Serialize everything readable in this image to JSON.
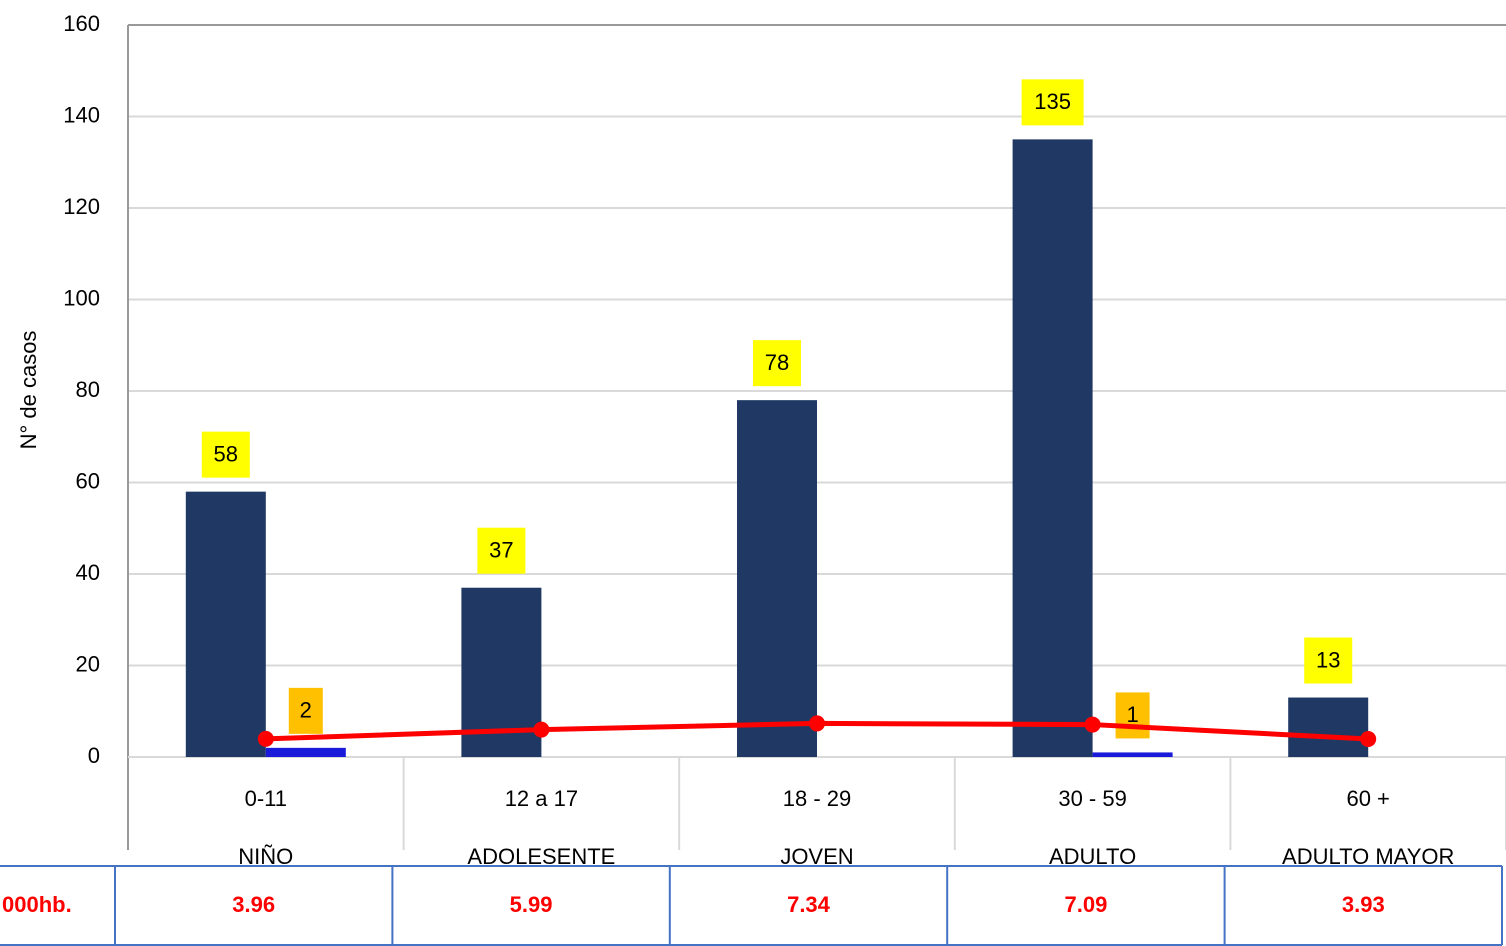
{
  "chart_data": {
    "type": "bar",
    "y_axis_label": "N° de casos",
    "categories": [
      "0-11",
      "12 a 17",
      "18 - 29",
      "30 - 59",
      "60 +"
    ],
    "groups": [
      "NIÑO",
      "ADOLESENTE",
      "JOVEN",
      "ADULTO",
      "ADULTO MAYOR"
    ],
    "series": [
      {
        "type": "bar",
        "color": "#203864",
        "label_color": "#ffff00",
        "values": [
          58,
          37,
          78,
          135,
          13
        ]
      },
      {
        "type": "bar",
        "color": "#1a1adb",
        "label_color": "#ffc000",
        "values": [
          2,
          null,
          null,
          1,
          null
        ]
      },
      {
        "type": "line",
        "color": "#ff0000",
        "values": [
          3.96,
          5.99,
          7.34,
          7.09,
          3.93
        ]
      }
    ],
    "table_label": "000hb.",
    "ylim": [
      0,
      160
    ],
    "yticks": [
      0,
      20,
      40,
      60,
      80,
      100,
      120,
      140,
      160
    ],
    "grid": true
  }
}
